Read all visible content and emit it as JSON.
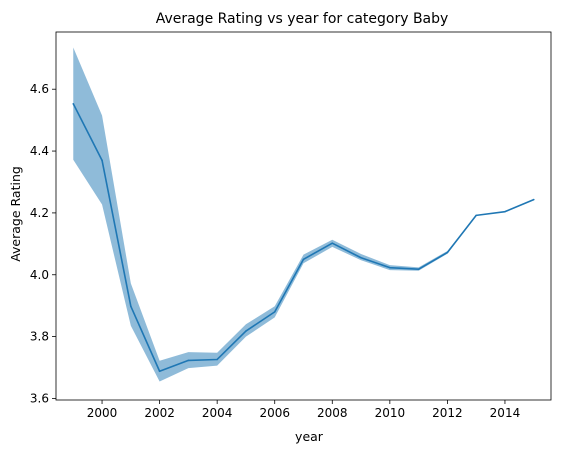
{
  "chart_data": {
    "type": "line",
    "title": "Average Rating vs year for category Baby",
    "xlabel": "year",
    "ylabel": "Average Rating",
    "xlim": [
      1998.4,
      2015.6
    ],
    "ylim": [
      3.595,
      4.785
    ],
    "x_ticks": [
      2000,
      2002,
      2004,
      2006,
      2008,
      2010,
      2012,
      2014
    ],
    "y_ticks": [
      3.6,
      3.8,
      4.0,
      4.2,
      4.4,
      4.6
    ],
    "grid": false,
    "legend": "none",
    "line_color": "#1f77b4",
    "band_color": "#1f77b4",
    "series": [
      {
        "x": [
          1999,
          2000,
          2001,
          2002,
          2003,
          2004,
          2005,
          2006,
          2007,
          2008,
          2009,
          2010,
          2011,
          2012,
          2013,
          2014,
          2015
        ],
        "values": [
          4.553,
          4.37,
          3.898,
          3.688,
          3.723,
          3.726,
          3.818,
          3.88,
          4.05,
          4.102,
          4.055,
          4.023,
          4.018,
          4.072,
          4.192,
          4.204,
          4.243
        ],
        "ci_lower": [
          4.372,
          4.227,
          3.835,
          3.655,
          3.698,
          3.706,
          3.8,
          3.862,
          4.037,
          4.09,
          4.047,
          4.015,
          4.013,
          4.068,
          4.192,
          4.204,
          4.243
        ],
        "ci_upper": [
          4.735,
          4.515,
          3.972,
          3.722,
          3.75,
          3.748,
          3.84,
          3.898,
          4.065,
          4.113,
          4.067,
          4.031,
          4.024,
          4.077,
          4.192,
          4.204,
          4.243
        ]
      }
    ]
  }
}
